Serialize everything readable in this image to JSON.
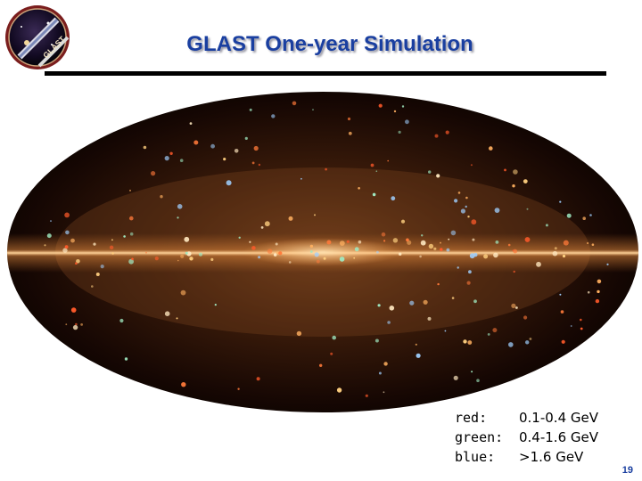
{
  "slide": {
    "title": "GLAST One-year Simulation",
    "page_number": "19"
  },
  "logo": {
    "text": "GLAST",
    "icon": "glast-mission-patch-icon"
  },
  "image": {
    "icon": "all-sky-map-image"
  },
  "legend": {
    "rows": [
      {
        "key": "red:",
        "value": "0.1-0.4 GeV"
      },
      {
        "key": "green:",
        "value": "0.4-1.6 GeV"
      },
      {
        "key": "blue:",
        "value": ">1.6 GeV"
      }
    ]
  },
  "colors": {
    "title": "#1a3fa0",
    "rule": "#000000"
  }
}
